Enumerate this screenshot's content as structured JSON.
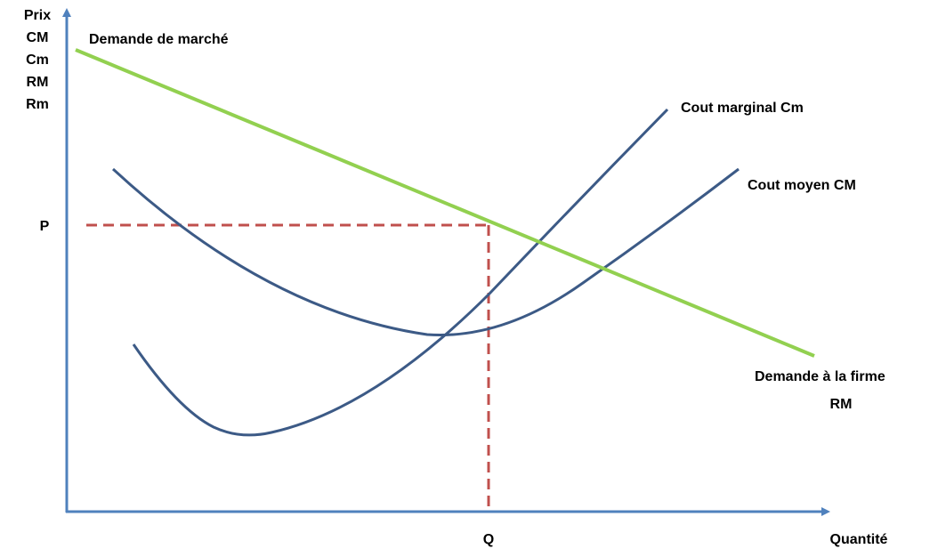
{
  "axes": {
    "y_labels": [
      "Prix",
      "CM",
      "Cm",
      "RM",
      "Rm"
    ],
    "x_label": "Quantité"
  },
  "markers": {
    "p": "P",
    "q": "Q"
  },
  "curves": {
    "market_demand": {
      "label": "Demande de marché"
    },
    "marginal_cost": {
      "label": "Cout marginal Cm"
    },
    "average_cost": {
      "label": "Cout moyen CM"
    },
    "firm_demand": {
      "label_lines": [
        "Demande à la firme",
        "RM"
      ]
    }
  }
}
